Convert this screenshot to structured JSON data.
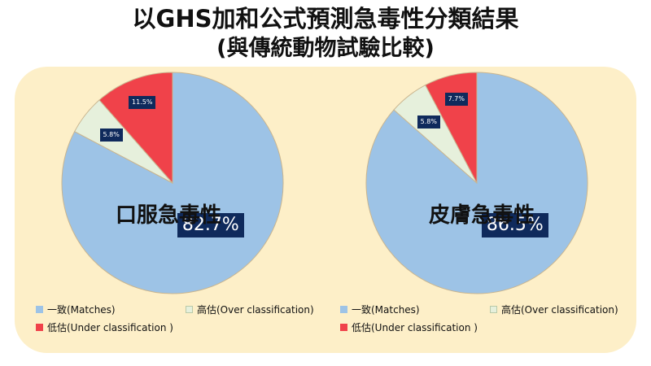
{
  "title": {
    "line1": "以GHS加和公式預測急毒性分類結果",
    "line2": "(與傳統動物試驗比較)"
  },
  "legend": {
    "matches": "一致(Matches)",
    "over": "高估(Over classification)",
    "under": "低估(Under classification )"
  },
  "colors": {
    "matches": "#9dc3e6",
    "over": "#e6f0dc",
    "under": "#f0424a",
    "label_bg": "#0f2a5c",
    "panel": "#fdefc8"
  },
  "chart_data": [
    {
      "type": "pie",
      "name": "口服急毒性",
      "slices": [
        {
          "label": "一致(Matches)",
          "value": 82.7,
          "text": "82.7%"
        },
        {
          "label": "高估(Over classification)",
          "value": 5.8,
          "text": "5.8%"
        },
        {
          "label": "低估(Under classification )",
          "value": 11.5,
          "text": "11.5%"
        }
      ]
    },
    {
      "type": "pie",
      "name": "皮膚急毒性",
      "slices": [
        {
          "label": "一致(Matches)",
          "value": 86.5,
          "text": "86.5%"
        },
        {
          "label": "高估(Over classification)",
          "value": 5.8,
          "text": "5.8%"
        },
        {
          "label": "低估(Under classification )",
          "value": 7.7,
          "text": "7.7%"
        }
      ]
    }
  ]
}
